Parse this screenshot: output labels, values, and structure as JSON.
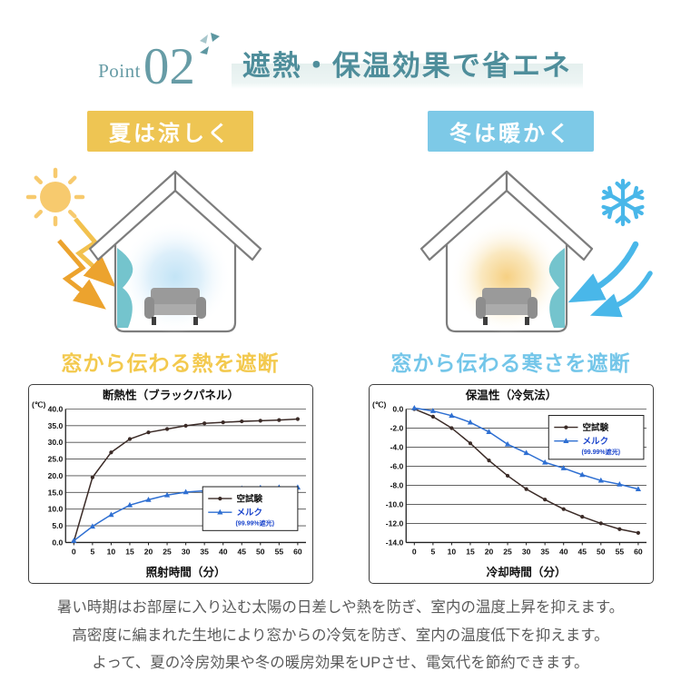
{
  "header": {
    "point_label": "Point",
    "point_number": "02",
    "title": "遮熱・保温効果で省エネ"
  },
  "summer": {
    "badge": "夏は涼しく",
    "caption": "窓から伝わる熱を遮断"
  },
  "winter": {
    "badge": "冬は暖かく",
    "caption": "窓から伝わる寒さを遮断"
  },
  "icons": {
    "header": "sparkle-icon",
    "summer": [
      "sun-icon",
      "heat-zigzag-arrow-icon"
    ],
    "winter": [
      "snowflake-icon",
      "cold-wind-arrow-icon"
    ]
  },
  "colors": {
    "accent_teal": "#4f8e9b",
    "summer_yellow": "#eec553",
    "winter_blue": "#7dc9e7",
    "series_blank_test": "#3b2b27",
    "series_mercu_blue": "#2e6fd2"
  },
  "footer": {
    "lines": [
      "暑い時期はお部屋に入り込む太陽の日差しや熱を防ぎ、室内の温度上昇を抑えます。",
      "高密度に編まれた生地により窓からの冷気を防ぎ、室内の温度低下を抑えます。",
      "よって、夏の冷房効果や冬の暖房効果をUPさせ、電気代を節約できます。"
    ]
  },
  "chart_data": [
    {
      "type": "line",
      "title": "断熱性（ブラックパネル）",
      "unit_label": "(℃)",
      "xlabel": "照射時間（分）",
      "x": [
        0,
        5,
        10,
        15,
        20,
        25,
        30,
        35,
        40,
        45,
        50,
        55,
        60
      ],
      "ylim": [
        0,
        40
      ],
      "ytick_step": 5,
      "grid": true,
      "legend_position": "bottom-right",
      "series": [
        {
          "name": "空試験",
          "color": "#3b2b27",
          "legend_color": "#111111",
          "marker": "circle",
          "values": [
            0.3,
            19.5,
            27.0,
            31.0,
            33.0,
            34.0,
            35.0,
            35.7,
            36.0,
            36.3,
            36.5,
            36.7,
            37.0
          ]
        },
        {
          "name": "メルク",
          "note": "(99.99%遮光)",
          "color": "#2e6fd2",
          "legend_color": "#1b45cc",
          "marker": "triangle",
          "values": [
            0.5,
            4.8,
            8.3,
            11.2,
            12.8,
            14.2,
            15.1,
            15.5,
            15.9,
            16.2,
            16.4,
            16.5,
            16.5
          ]
        }
      ]
    },
    {
      "type": "line",
      "title": "保温性（冷気法）",
      "unit_label": "(℃)",
      "xlabel": "冷却時間（分）",
      "x": [
        0,
        5,
        10,
        15,
        20,
        25,
        30,
        35,
        40,
        45,
        50,
        55,
        60
      ],
      "ylim": [
        -14,
        0
      ],
      "ytick_step": 2,
      "grid": true,
      "legend_position": "top-right",
      "series": [
        {
          "name": "空試験",
          "color": "#3b2b27",
          "legend_color": "#111111",
          "marker": "circle",
          "values": [
            0.0,
            -0.8,
            -2.0,
            -3.6,
            -5.4,
            -7.0,
            -8.4,
            -9.5,
            -10.5,
            -11.3,
            -12.0,
            -12.6,
            -13.0
          ]
        },
        {
          "name": "メルク",
          "note": "(99.99%遮光)",
          "color": "#2e6fd2",
          "legend_color": "#1b45cc",
          "marker": "triangle",
          "values": [
            0.1,
            -0.2,
            -0.7,
            -1.4,
            -2.4,
            -3.7,
            -4.6,
            -5.6,
            -6.2,
            -6.9,
            -7.5,
            -7.9,
            -8.4
          ]
        }
      ]
    }
  ]
}
